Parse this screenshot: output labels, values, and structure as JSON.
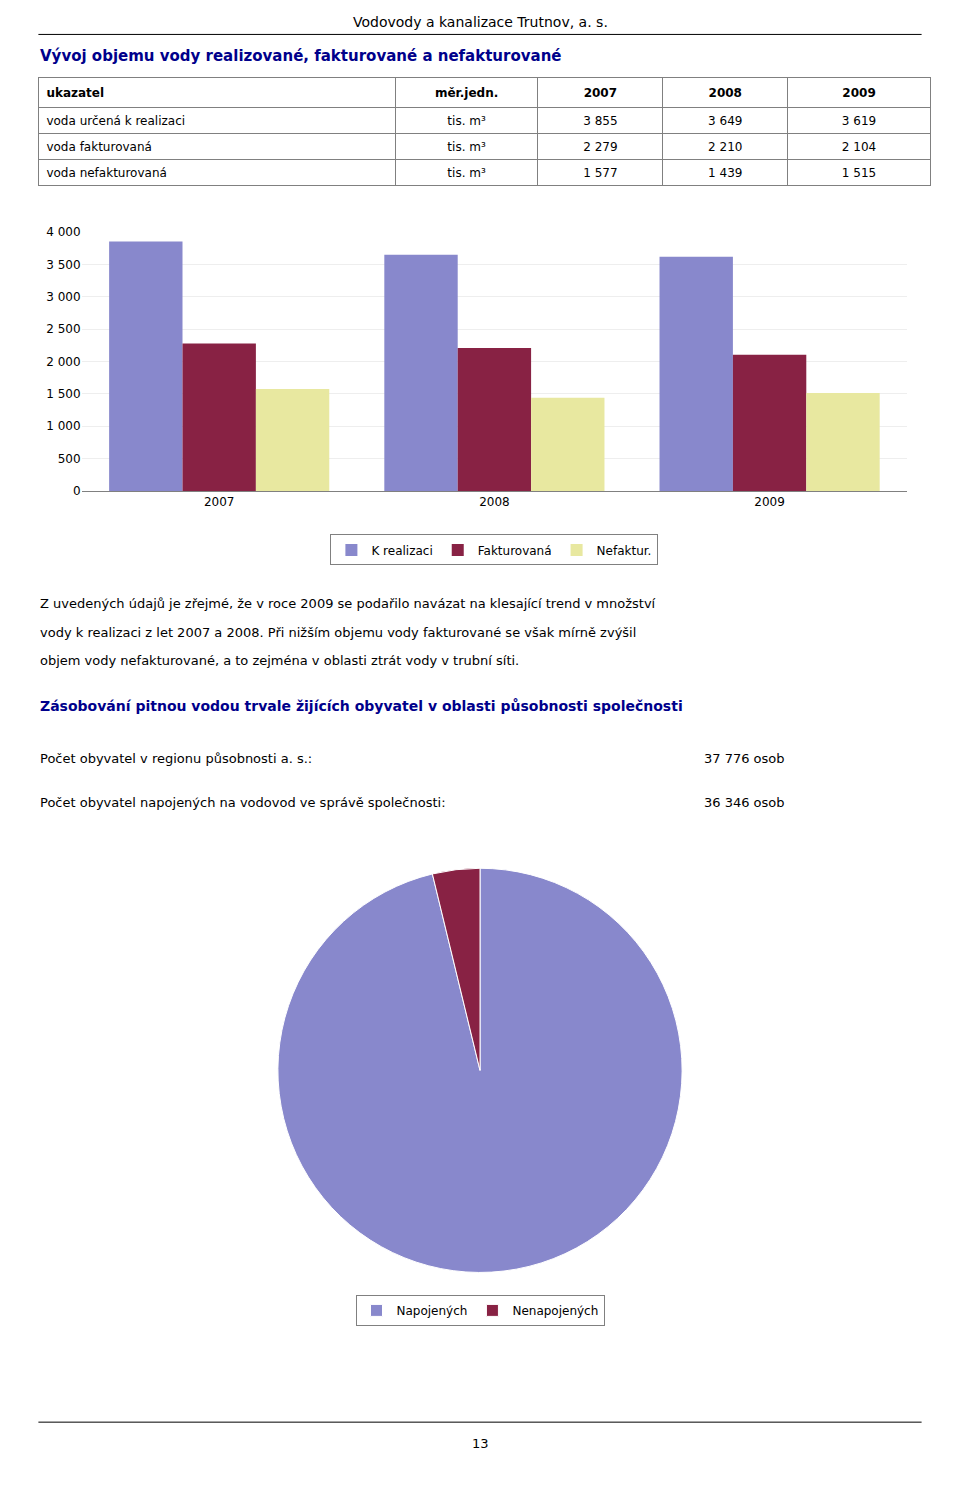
{
  "chart_data": [
    {
      "type": "table",
      "title": "Vývoj objemu vody realizované, fakturované a nefakturované",
      "annotations": [
        "Vodovody a kanalizace Trutnov, a. s.",
        "13"
      ],
      "columns": [
        "ukazatel",
        "měr.jedn.",
        "2007",
        "2008",
        "2009"
      ],
      "rows": [
        [
          "voda určená k realizaci",
          "tis. m³",
          "3 855",
          "3 649",
          "3 619"
        ],
        [
          "voda fakturovaná",
          "tis. m³",
          "2 279",
          "2 210",
          "2 104"
        ],
        [
          "voda nefakturovaná",
          "tis. m³",
          "1 577",
          "1 439",
          "1 515"
        ]
      ]
    },
    {
      "type": "bar",
      "categories": [
        "2007",
        "2008",
        "2009"
      ],
      "series": [
        {
          "name": "K realizaci",
          "color": "#8888cc",
          "values": [
            3855,
            3649,
            3619
          ]
        },
        {
          "name": "Fakturovaná",
          "color": "#882244",
          "values": [
            2279,
            2210,
            2104
          ]
        },
        {
          "name": "Nefaktur.",
          "color": "#e8e8a0",
          "values": [
            1577,
            1439,
            1515
          ]
        }
      ],
      "ylim": [
        0,
        4000
      ],
      "yticks": [
        0,
        500,
        {
          "value": 1000,
          "label": "1 000"
        },
        {
          "value": 1500,
          "label": "1 500"
        },
        {
          "value": 2000,
          "label": "2 000"
        },
        {
          "value": 2500,
          "label": "2 500"
        },
        {
          "value": 3000,
          "label": "3 000"
        },
        {
          "value": 3500,
          "label": "3 500"
        },
        {
          "value": 4000,
          "label": "4 000"
        }
      ],
      "grid": true,
      "legend": "bottom",
      "annotations": [
        "Z uvedených údajů je zřejmé, že v roce 2009 se podařilo navázat na klesající trend v množství",
        "vody k realizaci z let 2007 a 2008. Při nižším objemu vody fakturované se však mírně zvýšil",
        "objem vody nefakturované, a to zejména v oblasti ztrát vody v trubní síti."
      ]
    },
    {
      "type": "pie",
      "title": "Zásobování pitnou vodou trvale žijících obyvatel v oblasti působnosti společnosti",
      "categories": [
        "Napojených",
        "Nenapojených"
      ],
      "values": [
        36346,
        1430
      ],
      "colors": [
        "#8888cc",
        "#882244"
      ],
      "legend": "bottom",
      "data_labels": false,
      "annotations": [
        "Počet obyvatel v regionu působnosti a. s.:",
        "37 776 osob",
        "Počet obyvatel napojených na vodovod ve správě společnosti:",
        "36 346 osob"
      ]
    }
  ]
}
